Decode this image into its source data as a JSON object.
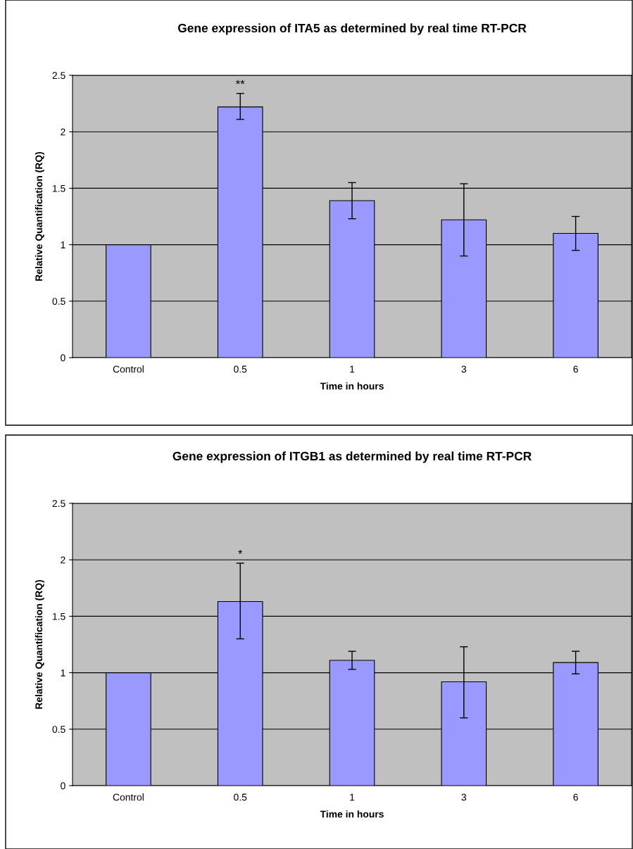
{
  "chart_data": [
    {
      "type": "bar",
      "title": "Gene expression of ITA5 as determined by real time RT-PCR",
      "xlabel": "Time in hours",
      "ylabel": "Relative Quantification (RQ)",
      "categories": [
        "Control",
        "0.5",
        "1",
        "3",
        "6"
      ],
      "values": [
        1.0,
        2.22,
        1.39,
        1.22,
        1.1
      ],
      "color": "#9999ff",
      "errors": [
        null,
        [
          2.11,
          2.34
        ],
        [
          1.23,
          1.55
        ],
        [
          0.9,
          1.54
        ],
        [
          0.95,
          1.25
        ]
      ],
      "ylim": [
        0,
        2.5
      ],
      "yticks": [
        0,
        0.5,
        1,
        1.5,
        2,
        2.5
      ],
      "grid": "y",
      "annotations": [
        {
          "text": "**",
          "x": "0.5",
          "y": 2.34
        }
      ]
    },
    {
      "type": "bar",
      "title": "Gene expression of ITGB1 as determined by real time RT-PCR",
      "xlabel": "Time in hours",
      "ylabel": "Relative Quantification (RQ)",
      "categories": [
        "Control",
        "0.5",
        "1",
        "3",
        "6"
      ],
      "values": [
        1.0,
        1.63,
        1.11,
        0.92,
        1.09
      ],
      "color": "#9999ff",
      "errors": [
        null,
        [
          1.3,
          1.97
        ],
        [
          1.03,
          1.19
        ],
        [
          0.6,
          1.23
        ],
        [
          0.99,
          1.19
        ]
      ],
      "ylim": [
        0,
        2.5
      ],
      "yticks": [
        0,
        0.5,
        1,
        1.5,
        2,
        2.5
      ],
      "grid": "y",
      "annotations": [
        {
          "text": "*",
          "x": "0.5",
          "y": 1.97
        }
      ]
    }
  ]
}
